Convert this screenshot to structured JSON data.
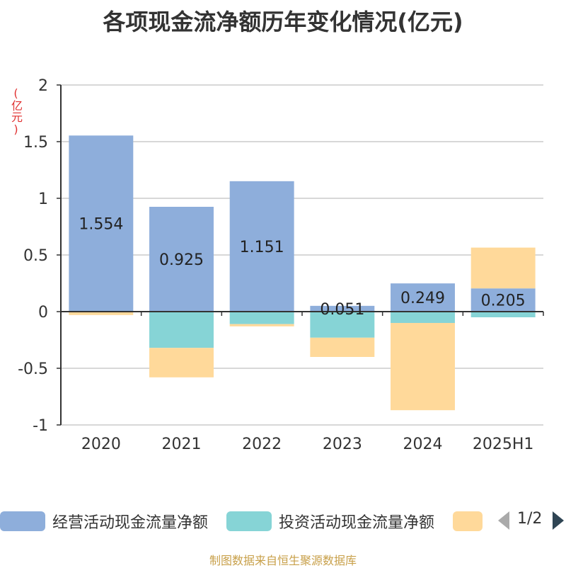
{
  "chart_data": {
    "type": "bar",
    "title": "各项现金流净额历年变化情况(亿元)",
    "ylabel": "(亿元)",
    "categories": [
      "2020",
      "2021",
      "2022",
      "2023",
      "2024",
      "2025H1"
    ],
    "ylim": [
      -1,
      2
    ],
    "yticks": [
      "2",
      "1.5",
      "1",
      "0.5",
      "0",
      "-0.5",
      "-1"
    ],
    "stacked": true,
    "grid": true,
    "series": [
      {
        "name": "经营活动现金流量净额",
        "color": "#8eaedb",
        "values": [
          1.554,
          0.925,
          1.151,
          0.051,
          0.249,
          0.205
        ]
      },
      {
        "name": "投资活动现金流量净额",
        "color": "#86d4d6",
        "values": [
          0,
          -0.32,
          -0.11,
          -0.23,
          -0.1,
          -0.05
        ]
      },
      {
        "name": "",
        "color": "#ffd99a",
        "values": [
          -0.03,
          -0.26,
          -0.02,
          -0.17,
          -0.77,
          0.36
        ]
      }
    ],
    "data_labels": [
      "1.554",
      "0.925",
      "1.151",
      "0.051",
      "0.249",
      "0.205"
    ],
    "legend_position": "bottom"
  },
  "legend": {
    "page": "1/2"
  },
  "source": "制图数据来自恒生聚源数据库"
}
